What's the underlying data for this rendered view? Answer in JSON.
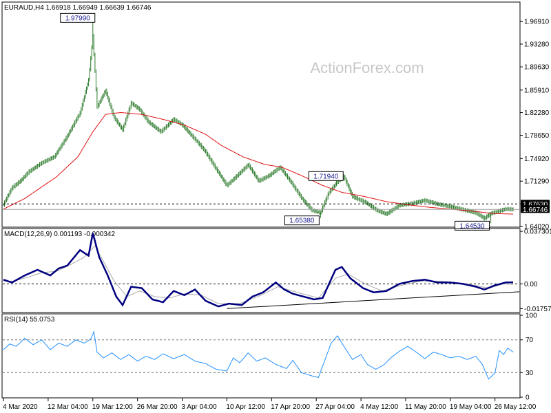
{
  "chart_data": {
    "type": "line",
    "symbol_header": "EURAUD,H4  1.66918 1.66949 1.66639 1.66746",
    "watermark": "ActionForex.com",
    "x_ticks": [
      "4 Mar 2020",
      "12 Mar 04:00",
      "19 Mar 12:00",
      "26 Mar 20:00",
      "3 Apr 04:00",
      "10 Apr 12:00",
      "17 Apr 20:00",
      "27 Apr 04:00",
      "4 May 12:00",
      "11 May 20:00",
      "19 May 04:00",
      "26 May 12:00"
    ],
    "x_tick_index": [
      0,
      42,
      84,
      126,
      168,
      210,
      252,
      294,
      336,
      378,
      420,
      462
    ],
    "bar_count": 480,
    "price_panel": {
      "ylim": [
        1.6402,
        1.9991
      ],
      "y_ticks": [
        "1.96910",
        "1.93280",
        "1.89630",
        "1.85910",
        "1.82280",
        "1.78650",
        "1.74920",
        "1.71290",
        "1.67630",
        "1.64020"
      ],
      "y_tick_values": [
        1.9691,
        1.9328,
        1.8963,
        1.8591,
        1.8228,
        1.7865,
        1.7492,
        1.7129,
        1.6763,
        1.6402
      ],
      "close_anchors": [
        [
          0,
          1.675
        ],
        [
          8,
          1.702
        ],
        [
          16,
          1.713
        ],
        [
          24,
          1.728
        ],
        [
          36,
          1.742
        ],
        [
          48,
          1.752
        ],
        [
          60,
          1.785
        ],
        [
          72,
          1.822
        ],
        [
          80,
          1.875
        ],
        [
          84,
          1.945
        ],
        [
          88,
          1.832
        ],
        [
          96,
          1.858
        ],
        [
          104,
          1.815
        ],
        [
          112,
          1.795
        ],
        [
          120,
          1.838
        ],
        [
          128,
          1.828
        ],
        [
          136,
          1.808
        ],
        [
          148,
          1.792
        ],
        [
          160,
          1.812
        ],
        [
          168,
          1.803
        ],
        [
          178,
          1.784
        ],
        [
          190,
          1.76
        ],
        [
          200,
          1.732
        ],
        [
          210,
          1.706
        ],
        [
          220,
          1.722
        ],
        [
          230,
          1.739
        ],
        [
          240,
          1.713
        ],
        [
          250,
          1.722
        ],
        [
          260,
          1.735
        ],
        [
          270,
          1.712
        ],
        [
          280,
          1.686
        ],
        [
          290,
          1.666
        ],
        [
          298,
          1.662
        ],
        [
          306,
          1.695
        ],
        [
          314,
          1.712
        ],
        [
          320,
          1.72
        ],
        [
          328,
          1.688
        ],
        [
          340,
          1.679
        ],
        [
          352,
          1.665
        ],
        [
          360,
          1.66
        ],
        [
          372,
          1.674
        ],
        [
          384,
          1.677
        ],
        [
          396,
          1.682
        ],
        [
          408,
          1.676
        ],
        [
          420,
          1.672
        ],
        [
          432,
          1.667
        ],
        [
          444,
          1.662
        ],
        [
          452,
          1.653
        ],
        [
          458,
          1.661
        ],
        [
          466,
          1.665
        ],
        [
          472,
          1.668
        ],
        [
          479,
          1.6675
        ]
      ],
      "ma_anchors": [
        [
          0,
          1.668
        ],
        [
          20,
          1.685
        ],
        [
          50,
          1.72
        ],
        [
          70,
          1.752
        ],
        [
          84,
          1.792
        ],
        [
          96,
          1.82
        ],
        [
          110,
          1.823
        ],
        [
          130,
          1.82
        ],
        [
          150,
          1.812
        ],
        [
          170,
          1.803
        ],
        [
          190,
          1.788
        ],
        [
          205,
          1.77
        ],
        [
          225,
          1.752
        ],
        [
          245,
          1.74
        ],
        [
          262,
          1.735
        ],
        [
          280,
          1.722
        ],
        [
          300,
          1.706
        ],
        [
          318,
          1.695
        ],
        [
          340,
          1.688
        ],
        [
          360,
          1.68
        ],
        [
          380,
          1.675
        ],
        [
          400,
          1.671
        ],
        [
          420,
          1.668
        ],
        [
          440,
          1.665
        ],
        [
          460,
          1.661
        ],
        [
          479,
          1.66
        ]
      ],
      "hline_value": 1.6763,
      "hline_label": "1.67630",
      "current_line_value": 1.66746,
      "current_label": "1.66746",
      "annotations": [
        {
          "text": "1.97990",
          "bar": 84,
          "value": 1.9799
        },
        {
          "text": "1.71940",
          "bar": 318,
          "value": 1.7194
        },
        {
          "text": "1.65380",
          "bar": 298,
          "value": 1.6538
        },
        {
          "text": "1.64530",
          "bar": 458,
          "value": 1.6453
        }
      ]
    },
    "macd_panel": {
      "label": "MACD(12,26,9) 0.001193 -0.000342",
      "ylim": [
        -0.0198,
        0.0388
      ],
      "y_ticks": [
        "0.037301",
        "0.00",
        "-0.017577"
      ],
      "y_tick_values": [
        0.037301,
        0.0,
        -0.017577
      ],
      "macd_anchors": [
        [
          0,
          0.003
        ],
        [
          8,
          0.001
        ],
        [
          20,
          0.006
        ],
        [
          32,
          0.01
        ],
        [
          44,
          0.006
        ],
        [
          52,
          0.011
        ],
        [
          60,
          0.013
        ],
        [
          72,
          0.024
        ],
        [
          80,
          0.02
        ],
        [
          84,
          0.036
        ],
        [
          90,
          0.019
        ],
        [
          98,
          0.006
        ],
        [
          106,
          -0.009
        ],
        [
          112,
          -0.015
        ],
        [
          120,
          -0.002
        ],
        [
          130,
          -0.003
        ],
        [
          140,
          -0.011
        ],
        [
          150,
          -0.013
        ],
        [
          160,
          -0.005
        ],
        [
          170,
          -0.008
        ],
        [
          180,
          -0.004
        ],
        [
          190,
          -0.012
        ],
        [
          202,
          -0.016
        ],
        [
          212,
          -0.014
        ],
        [
          224,
          -0.015
        ],
        [
          234,
          -0.009
        ],
        [
          244,
          -0.006
        ],
        [
          256,
          0.001
        ],
        [
          264,
          -0.004
        ],
        [
          272,
          -0.007
        ],
        [
          282,
          -0.009
        ],
        [
          292,
          -0.011
        ],
        [
          300,
          -0.01
        ],
        [
          312,
          0.01
        ],
        [
          318,
          0.012
        ],
        [
          326,
          0.004
        ],
        [
          338,
          -0.003
        ],
        [
          348,
          -0.006
        ],
        [
          360,
          -0.005
        ],
        [
          372,
          0.0
        ],
        [
          384,
          0.002
        ],
        [
          396,
          0.003
        ],
        [
          408,
          0.001
        ],
        [
          420,
          0.001
        ],
        [
          432,
          0.0
        ],
        [
          444,
          -0.002
        ],
        [
          452,
          -0.004
        ],
        [
          462,
          -0.001
        ],
        [
          472,
          0.001
        ],
        [
          479,
          0.0012
        ]
      ],
      "signal_anchors": [
        [
          0,
          0.002
        ],
        [
          10,
          0.002
        ],
        [
          24,
          0.005
        ],
        [
          36,
          0.008
        ],
        [
          50,
          0.009
        ],
        [
          64,
          0.014
        ],
        [
          76,
          0.019
        ],
        [
          86,
          0.027
        ],
        [
          94,
          0.016
        ],
        [
          104,
          0.002
        ],
        [
          116,
          -0.009
        ],
        [
          128,
          -0.005
        ],
        [
          142,
          -0.009
        ],
        [
          156,
          -0.01
        ],
        [
          170,
          -0.007
        ],
        [
          186,
          -0.008
        ],
        [
          202,
          -0.014
        ],
        [
          222,
          -0.014
        ],
        [
          242,
          -0.008
        ],
        [
          258,
          -0.002
        ],
        [
          276,
          -0.006
        ],
        [
          296,
          -0.01
        ],
        [
          312,
          0.004
        ],
        [
          324,
          0.007
        ],
        [
          340,
          0.0
        ],
        [
          356,
          -0.005
        ],
        [
          374,
          -0.001
        ],
        [
          392,
          0.002
        ],
        [
          412,
          0.002
        ],
        [
          436,
          0.0
        ],
        [
          456,
          -0.003
        ],
        [
          470,
          0.0
        ],
        [
          479,
          -0.0003
        ]
      ],
      "trendline": [
        [
          210,
          -0.0175
        ],
        [
          479,
          -0.0056
        ]
      ]
    },
    "rsi_panel": {
      "label": "RSI(14) 55.0753",
      "ylim": [
        0,
        100
      ],
      "y_ticks": [
        "100",
        "70",
        "30",
        "0"
      ],
      "y_tick_values": [
        100,
        70,
        30,
        0
      ],
      "dashed_levels": [
        70,
        30
      ],
      "rsi_anchors": [
        [
          0,
          58
        ],
        [
          6,
          65
        ],
        [
          12,
          62
        ],
        [
          20,
          72
        ],
        [
          28,
          64
        ],
        [
          36,
          70
        ],
        [
          44,
          58
        ],
        [
          52,
          66
        ],
        [
          60,
          62
        ],
        [
          68,
          70
        ],
        [
          76,
          66
        ],
        [
          82,
          71
        ],
        [
          85,
          80
        ],
        [
          88,
          55
        ],
        [
          94,
          48
        ],
        [
          102,
          54
        ],
        [
          110,
          46
        ],
        [
          118,
          52
        ],
        [
          126,
          44
        ],
        [
          134,
          50
        ],
        [
          142,
          46
        ],
        [
          150,
          53
        ],
        [
          160,
          47
        ],
        [
          170,
          52
        ],
        [
          180,
          44
        ],
        [
          190,
          41
        ],
        [
          200,
          34
        ],
        [
          210,
          32
        ],
        [
          216,
          48
        ],
        [
          222,
          42
        ],
        [
          230,
          54
        ],
        [
          238,
          44
        ],
        [
          246,
          48
        ],
        [
          256,
          40
        ],
        [
          266,
          35
        ],
        [
          272,
          45
        ],
        [
          280,
          30
        ],
        [
          290,
          26
        ],
        [
          296,
          24
        ],
        [
          302,
          45
        ],
        [
          308,
          66
        ],
        [
          314,
          75
        ],
        [
          320,
          62
        ],
        [
          328,
          46
        ],
        [
          336,
          52
        ],
        [
          342,
          40
        ],
        [
          350,
          34
        ],
        [
          358,
          40
        ],
        [
          364,
          48
        ],
        [
          372,
          56
        ],
        [
          380,
          62
        ],
        [
          388,
          55
        ],
        [
          396,
          47
        ],
        [
          404,
          55
        ],
        [
          412,
          52
        ],
        [
          420,
          48
        ],
        [
          428,
          50
        ],
        [
          436,
          46
        ],
        [
          444,
          50
        ],
        [
          450,
          40
        ],
        [
          456,
          22
        ],
        [
          462,
          30
        ],
        [
          466,
          57
        ],
        [
          470,
          52
        ],
        [
          474,
          60
        ],
        [
          479,
          55.0753
        ]
      ]
    }
  }
}
